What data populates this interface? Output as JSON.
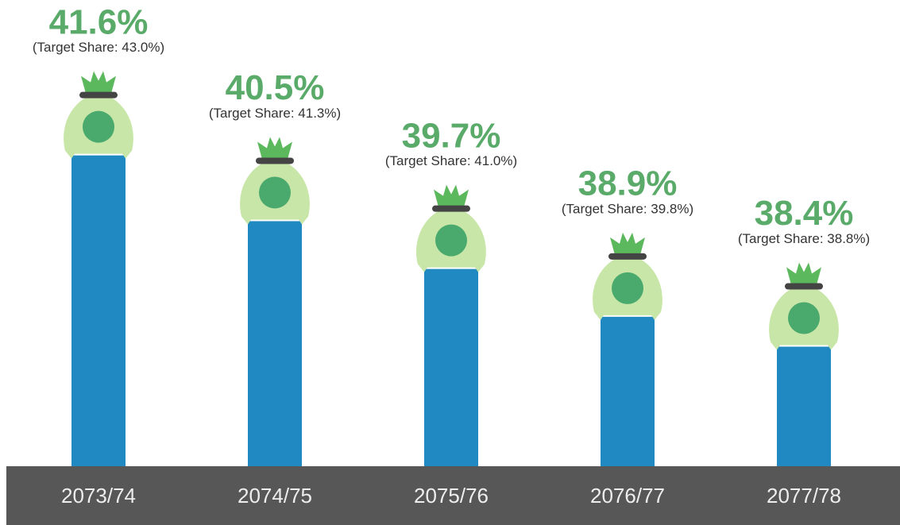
{
  "chart_data": {
    "type": "bar",
    "categories": [
      "2073/74",
      "2074/75",
      "2075/76",
      "2076/77",
      "2077/78"
    ],
    "values": [
      41.6,
      40.5,
      39.7,
      38.9,
      38.4
    ],
    "value_labels": [
      "41.6%",
      "40.5%",
      "39.7%",
      "38.9%",
      "38.4%"
    ],
    "target_values": [
      43.0,
      41.3,
      41.0,
      39.8,
      38.8
    ],
    "target_labels": [
      "(Target Share: 43.0%)",
      "(Target Share: 41.3%)",
      "(Target Share: 41.0%)",
      "(Target Share: 39.8%)",
      "(Target Share: 38.8%)"
    ],
    "color": "#2189c1",
    "ylim": [
      36.4,
      44.2
    ]
  }
}
